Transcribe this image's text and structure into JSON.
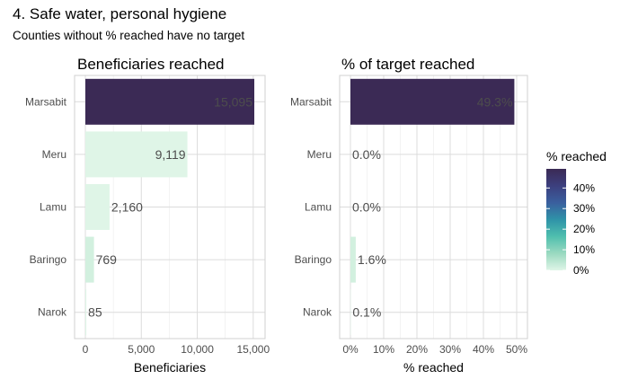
{
  "title": "4. Safe water, personal hygiene",
  "subtitle": "Counties without % reached have no target",
  "colors": {
    "scale": [
      "#dff5e7",
      "#9ad9c0",
      "#4fbfae",
      "#2f93a8",
      "#3a5f9e",
      "#3c3f7e",
      "#3b2a55"
    ]
  },
  "chart_data": [
    {
      "type": "bar",
      "orientation": "horizontal",
      "title": "Beneficiaries reached",
      "xlabel": "Beneficiaries",
      "categories": [
        "Marsabit",
        "Meru",
        "Lamu",
        "Baringo",
        "Narok"
      ],
      "values": [
        15095,
        9119,
        2160,
        769,
        85
      ],
      "labels": [
        "15,095",
        "9,119",
        "2,160",
        "769",
        "85"
      ],
      "pct_reached": [
        49.3,
        0.0,
        0.0,
        1.6,
        0.1
      ],
      "xlim": [
        0,
        15095
      ],
      "xticks": [
        0,
        5000,
        10000,
        15000
      ],
      "xtick_labels": [
        "0",
        "5,000",
        "10,000",
        "15,000"
      ],
      "grid": true
    },
    {
      "type": "bar",
      "orientation": "horizontal",
      "title": "% of target reached",
      "xlabel": "% reached",
      "categories": [
        "Marsabit",
        "Meru",
        "Lamu",
        "Baringo",
        "Narok"
      ],
      "values": [
        49.3,
        0.0,
        0.0,
        1.6,
        0.1
      ],
      "labels": [
        "49.3%",
        "0.0%",
        "0.0%",
        "1.6%",
        "0.1%"
      ],
      "xlim": [
        0,
        50
      ],
      "xticks": [
        0,
        10,
        20,
        30,
        40,
        50
      ],
      "xtick_labels": [
        "0%",
        "10%",
        "20%",
        "30%",
        "40%",
        "50%"
      ],
      "grid": true
    }
  ],
  "legend": {
    "title": "% reached",
    "position": "right",
    "range": [
      0,
      49.3
    ],
    "ticks": [
      0,
      10,
      20,
      30,
      40
    ],
    "tick_labels": [
      "0%",
      "10%",
      "20%",
      "30%",
      "40%"
    ]
  }
}
